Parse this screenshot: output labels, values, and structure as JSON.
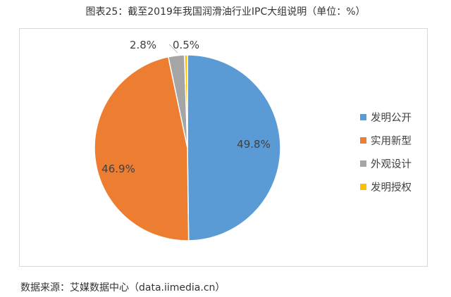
{
  "title": "图表25：截至2019年我国润滑油行业IPC大组说明（单位：%）",
  "source": "数据来源：艾媒数据中心（data.iimedia.cn）",
  "legend": [
    {
      "label": "发明公开",
      "color": "#5b9bd5"
    },
    {
      "label": "实用新型",
      "color": "#ed7d31"
    },
    {
      "label": "外观设计",
      "color": "#a5a5a5"
    },
    {
      "label": "发明授权",
      "color": "#ffc000"
    }
  ],
  "labels": {
    "s0": "49.8%",
    "s1": "46.9%",
    "s2": "2.8%",
    "s3": "0.5%"
  },
  "chart_data": {
    "type": "pie",
    "title": "图表25：截至2019年我国润滑油行业IPC大组说明（单位：%）",
    "categories": [
      "发明公开",
      "实用新型",
      "外观设计",
      "发明授权"
    ],
    "values": [
      49.8,
      46.9,
      2.8,
      0.5
    ],
    "colors": [
      "#5b9bd5",
      "#ed7d31",
      "#a5a5a5",
      "#ffc000"
    ],
    "legend_position": "right",
    "data_labels": [
      "49.8%",
      "46.9%",
      "2.8%",
      "0.5%"
    ],
    "start_angle": "12 o'clock, clockwise"
  }
}
